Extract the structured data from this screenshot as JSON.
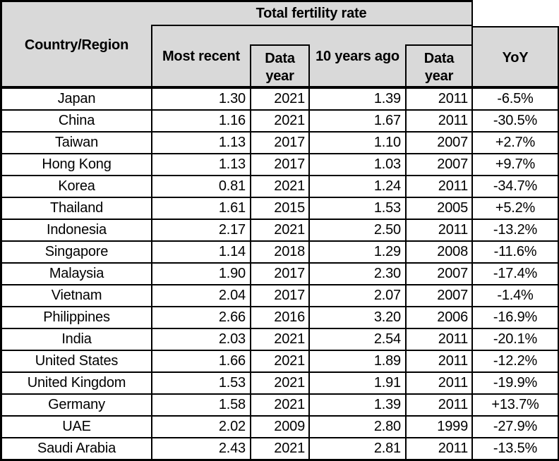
{
  "colors": {
    "header_fill": "#d9d9d9",
    "border": "#000000",
    "background": "#ffffff"
  },
  "chart_data": {
    "type": "table",
    "title": "Total fertility rate",
    "header": {
      "country_region": "Country/Region",
      "group_title": "Total fertility rate",
      "most_recent": "Most recent",
      "data_year": "Data year",
      "ten_years_ago": "10 years ago",
      "yoy": "YoY"
    },
    "columns": [
      "Country/Region",
      "Most recent",
      "Data year",
      "10 years ago",
      "Data year",
      "YoY"
    ],
    "rows": [
      [
        "Japan",
        "1.30",
        "2021",
        "1.39",
        "2011",
        "-6.5%"
      ],
      [
        "China",
        "1.16",
        "2021",
        "1.67",
        "2011",
        "-30.5%"
      ],
      [
        "Taiwan",
        "1.13",
        "2017",
        "1.10",
        "2007",
        "+2.7%"
      ],
      [
        "Hong Kong",
        "1.13",
        "2017",
        "1.03",
        "2007",
        "+9.7%"
      ],
      [
        "Korea",
        "0.81",
        "2021",
        "1.24",
        "2011",
        "-34.7%"
      ],
      [
        "Thailand",
        "1.61",
        "2015",
        "1.53",
        "2005",
        "+5.2%"
      ],
      [
        "Indonesia",
        "2.17",
        "2021",
        "2.50",
        "2011",
        "-13.2%"
      ],
      [
        "Singapore",
        "1.14",
        "2018",
        "1.29",
        "2008",
        "-11.6%"
      ],
      [
        "Malaysia",
        "1.90",
        "2017",
        "2.30",
        "2007",
        "-17.4%"
      ],
      [
        "Vietnam",
        "2.04",
        "2017",
        "2.07",
        "2007",
        "-1.4%"
      ],
      [
        "Philippines",
        "2.66",
        "2016",
        "3.20",
        "2006",
        "-16.9%"
      ],
      [
        "India",
        "2.03",
        "2021",
        "2.54",
        "2011",
        "-20.1%"
      ],
      [
        "United States",
        "1.66",
        "2021",
        "1.89",
        "2011",
        "-12.2%"
      ],
      [
        "United Kingdom",
        "1.53",
        "2021",
        "1.91",
        "2011",
        "-19.9%"
      ],
      [
        "Germany",
        "1.58",
        "2021",
        "1.39",
        "2011",
        "+13.7%"
      ],
      [
        "UAE",
        "2.02",
        "2009",
        "2.80",
        "1999",
        "-27.9%"
      ],
      [
        "Saudi Arabia",
        "2.43",
        "2021",
        "2.81",
        "2011",
        "-13.5%"
      ]
    ]
  }
}
